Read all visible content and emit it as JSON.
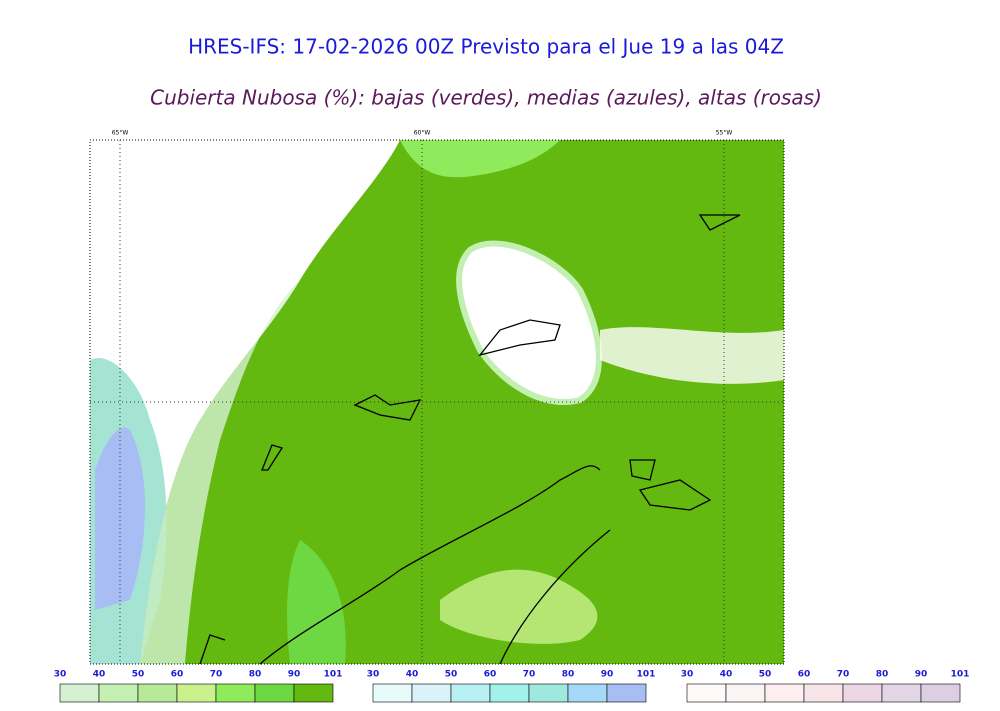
{
  "header": {
    "title": "HRES-IFS: 17-02-2026 00Z Previsto para el Jue 19 a las 04Z",
    "subtitle": "Cubierta Nubosa (%): bajas (verdes), medias (azules), altas (rosas)"
  },
  "map": {
    "lon_labels": [
      "65°W",
      "60°W",
      "55°W"
    ]
  },
  "legends": [
    {
      "ticks": [
        30,
        40,
        50,
        60,
        70,
        80,
        90,
        101
      ],
      "colors": [
        "#d4f1d2",
        "#c3efb3",
        "#b6ea98",
        "#c9f18c",
        "#8fea5c",
        "#6ed843",
        "#63b90f"
      ]
    },
    {
      "ticks": [
        30,
        40,
        50,
        60,
        70,
        80,
        90,
        101
      ],
      "colors": [
        "#e8fbfb",
        "#d9f3f8",
        "#b8f1f3",
        "#a2f1ea",
        "#9fe8de",
        "#a6d9f7",
        "#a8bdf4"
      ]
    },
    {
      "ticks": [
        30,
        40,
        50,
        60,
        70,
        80,
        90,
        101
      ],
      "colors": [
        "#fffafa",
        "#fbf4f5",
        "#fdeef1",
        "#f8e5ea",
        "#ead7e3",
        "#e2d6e6",
        "#dccfe3"
      ]
    }
  ]
}
